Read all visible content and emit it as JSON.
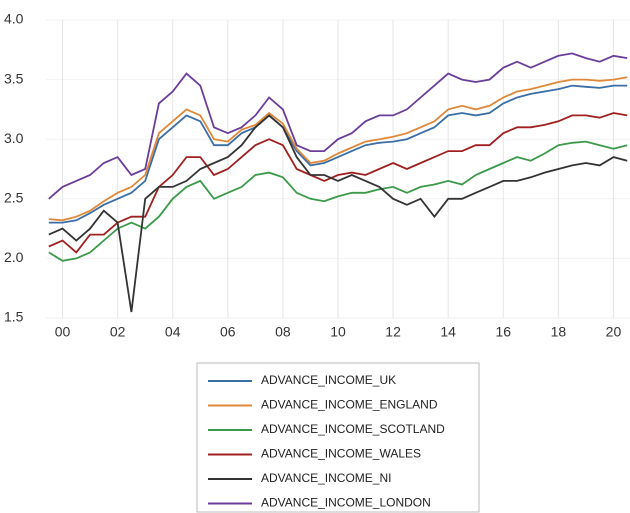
{
  "chart_data": {
    "type": "line",
    "x": [
      1999.5,
      2000,
      2000.5,
      2001,
      2001.5,
      2002,
      2002.5,
      2003,
      2003.5,
      2004,
      2004.5,
      2005,
      2005.5,
      2006,
      2006.5,
      2007,
      2007.5,
      2008,
      2008.5,
      2009,
      2009.5,
      2010,
      2010.5,
      2011,
      2011.5,
      2012,
      2012.5,
      2013,
      2013.5,
      2014,
      2014.5,
      2015,
      2015.5,
      2016,
      2016.5,
      2017,
      2017.5,
      2018,
      2018.5,
      2019,
      2019.5,
      2020,
      2020.5
    ],
    "series": [
      {
        "name": "ADVANCE_INCOME_UK",
        "color": "#3a6ea5",
        "values": [
          2.3,
          2.3,
          2.32,
          2.38,
          2.45,
          2.5,
          2.55,
          2.65,
          3.0,
          3.1,
          3.2,
          3.15,
          2.95,
          2.95,
          3.05,
          3.1,
          3.2,
          3.1,
          2.9,
          2.78,
          2.8,
          2.85,
          2.9,
          2.95,
          2.97,
          2.98,
          3.0,
          3.05,
          3.1,
          3.2,
          3.22,
          3.2,
          3.22,
          3.3,
          3.35,
          3.38,
          3.4,
          3.42,
          3.45,
          3.44,
          3.43,
          3.45,
          3.45
        ]
      },
      {
        "name": "ADVANCE_INCOME_ENGLAND",
        "color": "#e0883a",
        "values": [
          2.33,
          2.32,
          2.35,
          2.4,
          2.48,
          2.55,
          2.6,
          2.7,
          3.05,
          3.15,
          3.25,
          3.2,
          3.0,
          2.98,
          3.08,
          3.12,
          3.22,
          3.13,
          2.92,
          2.8,
          2.82,
          2.88,
          2.93,
          2.98,
          3.0,
          3.02,
          3.05,
          3.1,
          3.15,
          3.25,
          3.28,
          3.25,
          3.28,
          3.35,
          3.4,
          3.42,
          3.45,
          3.48,
          3.5,
          3.5,
          3.49,
          3.5,
          3.52
        ]
      },
      {
        "name": "ADVANCE_INCOME_SCOTLAND",
        "color": "#3a9a4a",
        "values": [
          2.05,
          1.98,
          2.0,
          2.05,
          2.15,
          2.25,
          2.3,
          2.25,
          2.35,
          2.5,
          2.6,
          2.65,
          2.5,
          2.55,
          2.6,
          2.7,
          2.72,
          2.68,
          2.55,
          2.5,
          2.48,
          2.52,
          2.55,
          2.55,
          2.58,
          2.6,
          2.55,
          2.6,
          2.62,
          2.65,
          2.62,
          2.7,
          2.75,
          2.8,
          2.85,
          2.82,
          2.88,
          2.95,
          2.97,
          2.98,
          2.95,
          2.92,
          2.95
        ]
      },
      {
        "name": "ADVANCE_INCOME_WALES",
        "color": "#a02020",
        "values": [
          2.1,
          2.15,
          2.05,
          2.2,
          2.2,
          2.3,
          2.35,
          2.35,
          2.6,
          2.7,
          2.85,
          2.85,
          2.7,
          2.75,
          2.85,
          2.95,
          3.0,
          2.95,
          2.75,
          2.7,
          2.65,
          2.7,
          2.72,
          2.7,
          2.75,
          2.8,
          2.75,
          2.8,
          2.85,
          2.9,
          2.9,
          2.95,
          2.95,
          3.05,
          3.1,
          3.1,
          3.12,
          3.15,
          3.2,
          3.2,
          3.18,
          3.22,
          3.2
        ]
      },
      {
        "name": "ADVANCE_INCOME_NI",
        "color": "#333333",
        "values": [
          2.2,
          2.25,
          2.15,
          2.25,
          2.4,
          2.3,
          1.55,
          2.5,
          2.6,
          2.6,
          2.65,
          2.75,
          2.8,
          2.85,
          2.95,
          3.1,
          3.2,
          3.1,
          2.85,
          2.7,
          2.7,
          2.65,
          2.7,
          2.65,
          2.6,
          2.5,
          2.45,
          2.5,
          2.35,
          2.5,
          2.5,
          2.55,
          2.6,
          2.65,
          2.65,
          2.68,
          2.72,
          2.75,
          2.78,
          2.8,
          2.78,
          2.85,
          2.82
        ]
      },
      {
        "name": "ADVANCE_INCOME_LONDON",
        "color": "#6a3d9a",
        "values": [
          2.5,
          2.6,
          2.65,
          2.7,
          2.8,
          2.85,
          2.7,
          2.75,
          3.3,
          3.4,
          3.55,
          3.45,
          3.1,
          3.05,
          3.1,
          3.2,
          3.35,
          3.25,
          2.95,
          2.9,
          2.9,
          3.0,
          3.05,
          3.15,
          3.2,
          3.2,
          3.25,
          3.35,
          3.45,
          3.55,
          3.5,
          3.48,
          3.5,
          3.6,
          3.65,
          3.6,
          3.65,
          3.7,
          3.72,
          3.68,
          3.65,
          3.7,
          3.68
        ]
      }
    ],
    "xlim": [
      1999.4,
      2020.6
    ],
    "xticks": [
      {
        "value": 2000,
        "label": "00"
      },
      {
        "value": 2002,
        "label": "02"
      },
      {
        "value": 2004,
        "label": "04"
      },
      {
        "value": 2006,
        "label": "06"
      },
      {
        "value": 2008,
        "label": "08"
      },
      {
        "value": 2010,
        "label": "10"
      },
      {
        "value": 2012,
        "label": "12"
      },
      {
        "value": 2014,
        "label": "14"
      },
      {
        "value": 2016,
        "label": "16"
      },
      {
        "value": 2018,
        "label": "18"
      },
      {
        "value": 2020,
        "label": "20"
      }
    ],
    "ylim": [
      1.5,
      4.0
    ],
    "yticks": [
      1.5,
      {
        "value": 2,
        "label": "2.0"
      },
      2.5,
      {
        "value": 3,
        "label": "3.0"
      },
      3.5,
      {
        "value": 4,
        "label": "4.0"
      }
    ],
    "grid": true
  }
}
